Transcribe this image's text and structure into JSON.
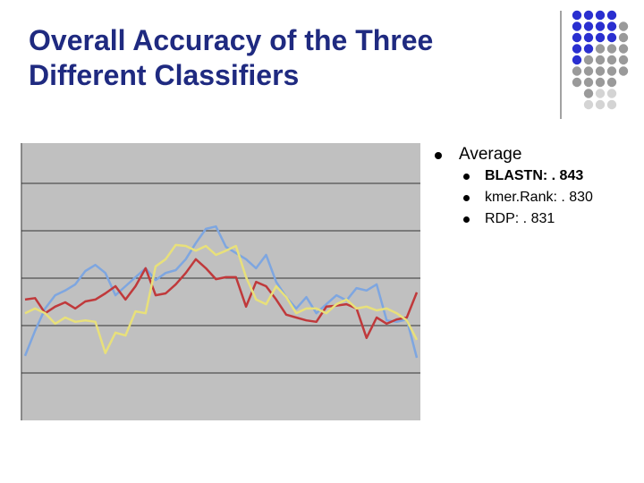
{
  "slide": {
    "title": "Overall Accuracy of the Three Different Classifiers",
    "bullet": "Average",
    "sub_bullets": [
      "BLASTN: . 843",
      "kmer.Rank: . 830",
      "RDP: . 831"
    ]
  },
  "chart_data": {
    "type": "line",
    "categories": [
      null,
      null,
      null,
      null,
      null,
      null,
      null,
      null,
      null,
      null,
      null,
      null,
      null,
      null,
      null,
      null,
      null,
      null,
      null,
      null,
      null,
      null,
      null,
      null,
      null,
      null,
      null,
      null,
      null,
      null,
      null,
      null,
      null,
      null,
      null,
      null,
      null,
      null,
      null,
      null
    ],
    "series": [
      {
        "color": "#7ea6e0",
        "values": [
          1.36,
          1.89,
          2.36,
          2.64,
          2.74,
          2.87,
          3.15,
          3.28,
          3.11,
          2.64,
          2.83,
          3.02,
          3.21,
          2.96,
          3.11,
          3.17,
          3.4,
          3.74,
          4.04,
          4.09,
          3.66,
          3.53,
          3.4,
          3.21,
          3.49,
          2.92,
          2.6,
          2.36,
          2.6,
          2.26,
          2.45,
          2.64,
          2.53,
          2.79,
          2.74,
          2.87,
          2.11,
          2.08,
          2.13,
          1.32
        ]
      },
      {
        "color": "#c0393b",
        "values": [
          2.55,
          2.58,
          2.26,
          2.4,
          2.49,
          2.36,
          2.51,
          2.55,
          2.68,
          2.83,
          2.55,
          2.83,
          3.21,
          2.64,
          2.68,
          2.87,
          3.11,
          3.4,
          3.21,
          2.98,
          3.02,
          3.02,
          2.4,
          2.92,
          2.83,
          2.55,
          2.23,
          2.17,
          2.11,
          2.08,
          2.4,
          2.42,
          2.45,
          2.36,
          1.74,
          2.17,
          2.04,
          2.13,
          2.17,
          2.7
        ]
      },
      {
        "color": "#e8e07a",
        "values": [
          2.26,
          2.36,
          2.26,
          2.04,
          2.17,
          2.08,
          2.11,
          2.08,
          1.42,
          1.85,
          1.79,
          2.3,
          2.26,
          3.25,
          3.4,
          3.7,
          3.68,
          3.58,
          3.68,
          3.49,
          3.58,
          3.68,
          3.02,
          2.55,
          2.45,
          2.83,
          2.6,
          2.26,
          2.36,
          2.36,
          2.26,
          2.45,
          2.55,
          2.36,
          2.4,
          2.32,
          2.36,
          2.26,
          2.11,
          1.7
        ]
      }
    ],
    "ylim": [
      0,
      6
    ],
    "yticks": [
      1,
      2,
      3,
      4,
      5
    ],
    "grid": true
  }
}
